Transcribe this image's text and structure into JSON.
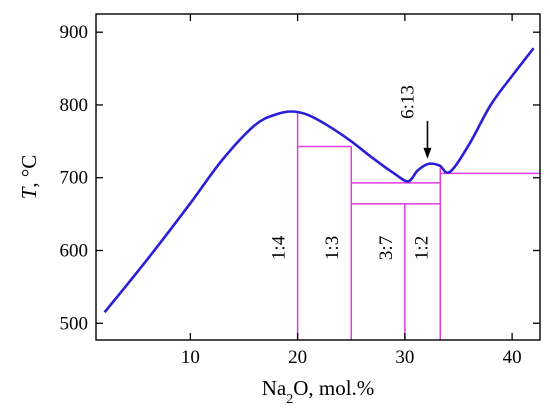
{
  "chart_data": {
    "type": "line",
    "xlabel": "Na2O, mol.%",
    "xlabel_parts": {
      "base": "Na",
      "sub": "2",
      "rest": "O, mol.%"
    },
    "ylabel_italic": "T",
    "ylabel_rest": ", °C",
    "xlim": [
      1.2,
      42.6
    ],
    "ylim": [
      477,
      925
    ],
    "xticks": [
      10,
      20,
      30,
      40
    ],
    "yticks": [
      500,
      600,
      700,
      800,
      900
    ],
    "colors": {
      "liquidus": "#2a1fd6",
      "phase": "#e23ce0",
      "axis": "#000000"
    },
    "series": [
      {
        "role": "liquidus",
        "points": [
          [
            2.0,
            515
          ],
          [
            6.0,
            588
          ],
          [
            10.0,
            665
          ],
          [
            13.0,
            725
          ],
          [
            16.0,
            772
          ],
          [
            18.0,
            787
          ],
          [
            19.5,
            791
          ],
          [
            21.0,
            786
          ],
          [
            23.0,
            770
          ],
          [
            25.0,
            750
          ],
          [
            27.0,
            727
          ],
          [
            29.0,
            706
          ],
          [
            30.3,
            695
          ],
          [
            31.2,
            710
          ],
          [
            32.2,
            719
          ],
          [
            33.2,
            717
          ],
          [
            34.2,
            708
          ],
          [
            36.0,
            746
          ],
          [
            38.0,
            800
          ],
          [
            40.0,
            840
          ],
          [
            42.0,
            878
          ]
        ]
      }
    ],
    "phase_lines": {
      "verticals": [
        {
          "x": 20.0,
          "ymin": 477,
          "ymax": 791,
          "label": "1:4"
        },
        {
          "x": 25.0,
          "ymin": 477,
          "ymax": 743,
          "label": "1:3"
        },
        {
          "x": 30.0,
          "ymin": 477,
          "ymax": 664,
          "label": "3:7"
        },
        {
          "x": 33.3,
          "ymin": 477,
          "ymax": 713,
          "label": "1:2"
        }
      ],
      "horizontals": [
        {
          "y": 743,
          "x1": 20.0,
          "x2": 25.0
        },
        {
          "y": 693,
          "x1": 25.0,
          "x2": 33.3
        },
        {
          "y": 664,
          "x1": 25.0,
          "x2": 33.3
        },
        {
          "y": 706,
          "x1": 33.3,
          "x2": 42.6
        }
      ]
    },
    "annotation": {
      "text": "6:13",
      "x": 32.2,
      "y": 719
    }
  }
}
